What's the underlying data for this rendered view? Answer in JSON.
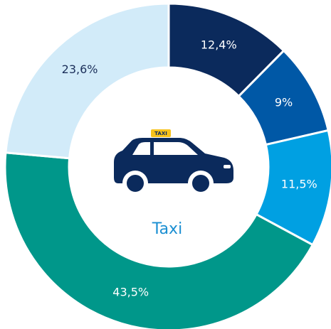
{
  "chart_data": {
    "type": "pie",
    "categories": [
      null,
      null,
      null,
      null,
      null
    ],
    "values": [
      12.4,
      9,
      11.5,
      43.5,
      23.6
    ],
    "value_labels": [
      "12,4%",
      "9%",
      "11,5%",
      "43,5%",
      "23,6%"
    ],
    "colors": [
      "#0b2a5c",
      "#0058a6",
      "#00a0e2",
      "#00978a",
      "#d2ebf9"
    ],
    "label_colors": [
      "#ffffff",
      "#ffffff",
      "#ffffff",
      "#ffffff",
      "#1b2f5a"
    ],
    "center_label": "Taxi",
    "icon_sign": "TAXI"
  }
}
